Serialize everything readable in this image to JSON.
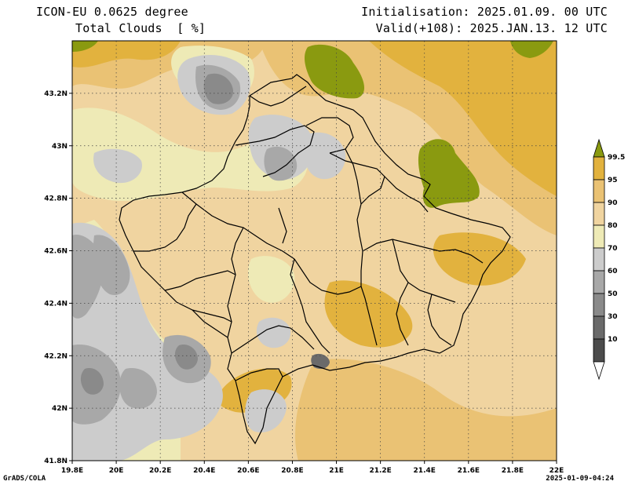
{
  "header": {
    "model": "ICON-EU 0.0625 degree",
    "variable": "Total Clouds  [ %]",
    "initialisation": "Initialisation: 2025.01.09. 00 UTC",
    "valid": "Valid(+108): 2025.JAN.13. 12 UTC"
  },
  "footer": {
    "credit": "GrADS/COLA",
    "timestamp": "2025-01-09-04:24"
  },
  "map": {
    "lon_range": [
      19.8,
      22.0
    ],
    "lat_range": [
      41.8,
      43.4
    ],
    "x_ticks": [
      "19.8E",
      "20E",
      "20.2E",
      "20.4E",
      "20.6E",
      "20.8E",
      "21E",
      "21.2E",
      "21.4E",
      "21.6E",
      "21.8E",
      "22E"
    ],
    "y_ticks": [
      "41.8N",
      "42N",
      "42.2N",
      "42.4N",
      "42.6N",
      "42.8N",
      "43N",
      "43.2N"
    ],
    "grid": "dotted"
  },
  "colorbar": {
    "labels": [
      "99.5",
      "95",
      "90",
      "80",
      "70",
      "60",
      "50",
      "30",
      "10"
    ],
    "colors": [
      "#8a9a10",
      "#e2b23e",
      "#eac274",
      "#f0d4a0",
      "#eeeab6",
      "#cccccc",
      "#a8a8a8",
      "#8a8a8a",
      "#6a6a6a",
      "#4c4c4c",
      "#ffffff"
    ]
  },
  "palette": {
    "olive": "#8a9a10",
    "orange_95": "#e2b23e",
    "tan_90": "#eac274",
    "beige_80": "#f0d4a0",
    "cream_70": "#eeeab6",
    "grey_60": "#cccccc",
    "grey_50": "#a8a8a8",
    "grey_30": "#8a8a8a"
  }
}
